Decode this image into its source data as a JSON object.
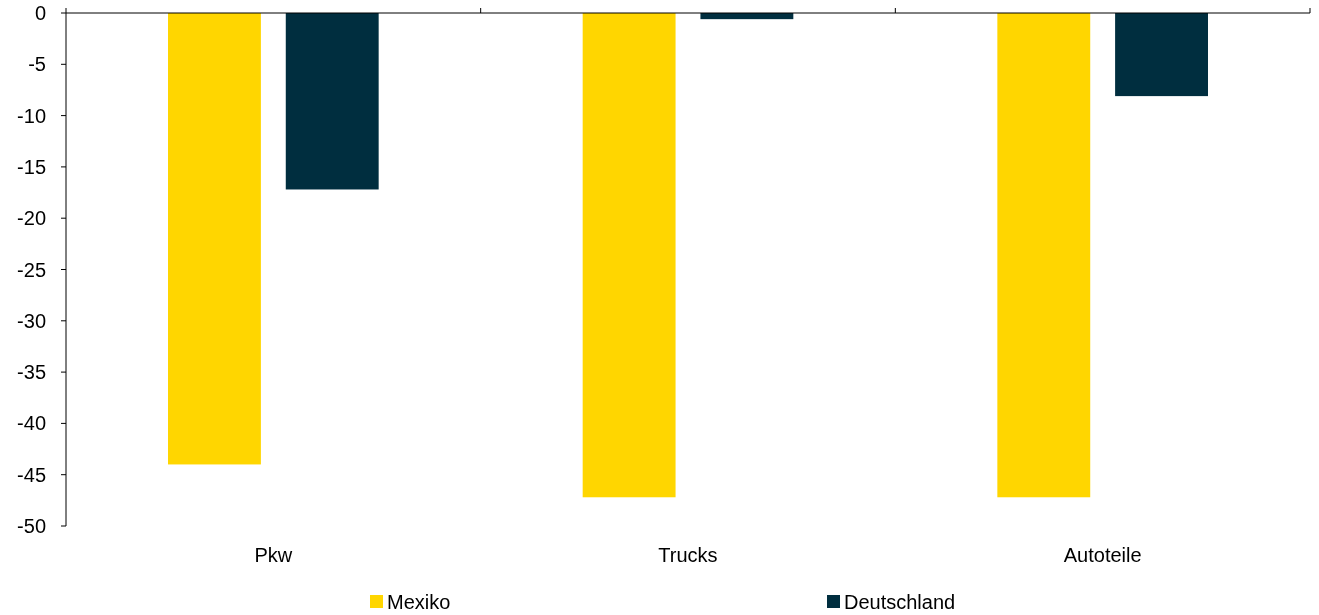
{
  "chart_data": {
    "type": "bar",
    "categories": [
      "Pkw",
      "Trucks",
      "Autoteile"
    ],
    "series": [
      {
        "name": "Mexiko",
        "color": "#ffd600",
        "values": [
          -44,
          -47.2,
          -47.2
        ]
      },
      {
        "name": "Deutschland",
        "color": "#002e3f",
        "values": [
          -17.2,
          -0.6,
          -8.1
        ]
      }
    ],
    "ylim": [
      -50,
      0
    ],
    "yticks": [
      -50,
      -45,
      -40,
      -35,
      -30,
      -25,
      -20,
      -15,
      -10,
      -5,
      0
    ],
    "grid": false,
    "legend": "bottom"
  }
}
